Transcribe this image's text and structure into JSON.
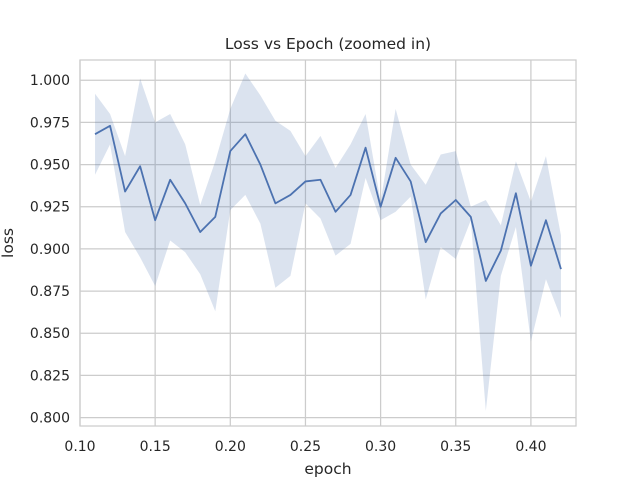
{
  "chart_data": {
    "type": "line",
    "title": "Loss vs Epoch (zoomed in)",
    "xlabel": "epoch",
    "ylabel": "loss",
    "xlim": [
      0.1,
      0.43
    ],
    "ylim": [
      0.795,
      1.012
    ],
    "xticks": [
      0.1,
      0.15,
      0.2,
      0.25,
      0.3,
      0.35,
      0.4
    ],
    "xtick_labels": [
      "0.10",
      "0.15",
      "0.20",
      "0.25",
      "0.30",
      "0.35",
      "0.40"
    ],
    "yticks": [
      0.8,
      0.825,
      0.85,
      0.875,
      0.9,
      0.925,
      0.95,
      0.975,
      1.0
    ],
    "ytick_labels": [
      "0.800",
      "0.825",
      "0.850",
      "0.875",
      "0.900",
      "0.925",
      "0.950",
      "0.975",
      "1.000"
    ],
    "grid": true,
    "line_color": "#4c72b0",
    "band_color": "#4c72b0",
    "x": [
      0.11,
      0.12,
      0.13,
      0.14,
      0.15,
      0.16,
      0.17,
      0.18,
      0.19,
      0.2,
      0.21,
      0.22,
      0.23,
      0.24,
      0.25,
      0.26,
      0.27,
      0.28,
      0.29,
      0.3,
      0.31,
      0.32,
      0.33,
      0.34,
      0.35,
      0.36,
      0.37,
      0.38,
      0.39,
      0.4,
      0.41,
      0.42
    ],
    "series": [
      {
        "values": [
          0.968,
          0.973,
          0.934,
          0.949,
          0.917,
          0.941,
          0.927,
          0.91,
          0.919,
          0.958,
          0.968,
          0.95,
          0.927,
          0.932,
          0.94,
          0.941,
          0.922,
          0.932,
          0.96,
          0.925,
          0.954,
          0.94,
          0.904,
          0.921,
          0.929,
          0.919,
          0.881,
          0.899,
          0.933,
          0.89,
          0.917,
          0.888
        ],
        "upper": [
          0.992,
          0.98,
          0.955,
          1.001,
          0.975,
          0.98,
          0.962,
          0.926,
          0.952,
          0.983,
          1.004,
          0.991,
          0.976,
          0.97,
          0.955,
          0.967,
          0.948,
          0.962,
          0.98,
          0.928,
          0.983,
          0.95,
          0.938,
          0.956,
          0.958,
          0.925,
          0.929,
          0.914,
          0.952,
          0.928,
          0.955,
          0.908
        ],
        "lower": [
          0.944,
          0.962,
          0.91,
          0.895,
          0.878,
          0.905,
          0.898,
          0.885,
          0.863,
          0.923,
          0.932,
          0.915,
          0.877,
          0.884,
          0.927,
          0.918,
          0.896,
          0.903,
          0.942,
          0.917,
          0.922,
          0.931,
          0.87,
          0.901,
          0.894,
          0.917,
          0.804,
          0.884,
          0.913,
          0.845,
          0.882,
          0.859
        ]
      }
    ]
  }
}
